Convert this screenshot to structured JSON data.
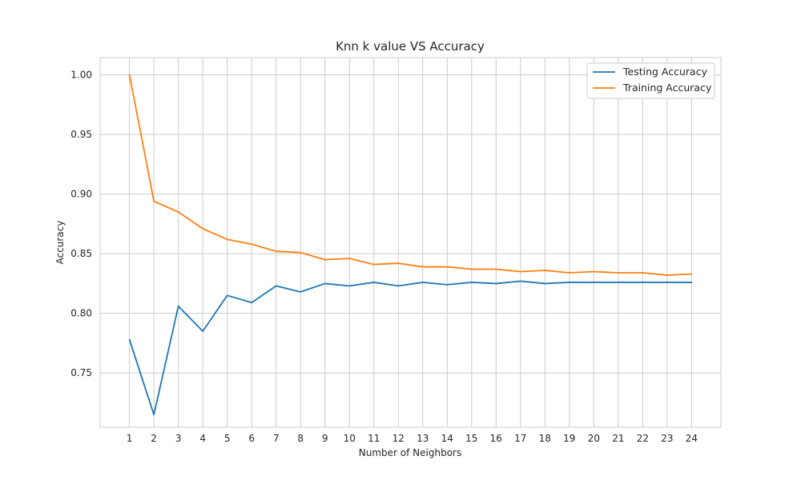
{
  "chart_data": {
    "type": "line",
    "title": "Knn k value VS Accuracy",
    "xlabel": "Number of Neighbors",
    "ylabel": "Accuracy",
    "x": [
      1,
      2,
      3,
      4,
      5,
      6,
      7,
      8,
      9,
      10,
      11,
      12,
      13,
      14,
      15,
      16,
      17,
      18,
      19,
      20,
      21,
      22,
      23,
      24
    ],
    "xlim": [
      -0.2,
      25.2
    ],
    "ylim": [
      0.7045,
      1.0145
    ],
    "yticks": [
      0.75,
      0.8,
      0.85,
      0.9,
      0.95,
      1.0
    ],
    "ytick_labels": [
      "0.75",
      "0.80",
      "0.85",
      "0.90",
      "0.95",
      "1.00"
    ],
    "grid": true,
    "legend_position": "top-right",
    "series": [
      {
        "name": "Testing Accuracy",
        "color": "#1f77b4",
        "values": [
          0.778,
          0.715,
          0.806,
          0.785,
          0.815,
          0.809,
          0.823,
          0.818,
          0.825,
          0.823,
          0.826,
          0.823,
          0.826,
          0.824,
          0.826,
          0.825,
          0.827,
          0.825,
          0.826,
          0.826,
          0.826,
          0.826,
          0.826,
          0.826
        ]
      },
      {
        "name": "Training Accuracy",
        "color": "#ff7f0e",
        "values": [
          1.0,
          0.894,
          0.885,
          0.871,
          0.862,
          0.858,
          0.852,
          0.851,
          0.845,
          0.846,
          0.841,
          0.842,
          0.839,
          0.839,
          0.837,
          0.837,
          0.835,
          0.836,
          0.834,
          0.835,
          0.834,
          0.834,
          0.832,
          0.833
        ]
      }
    ]
  }
}
